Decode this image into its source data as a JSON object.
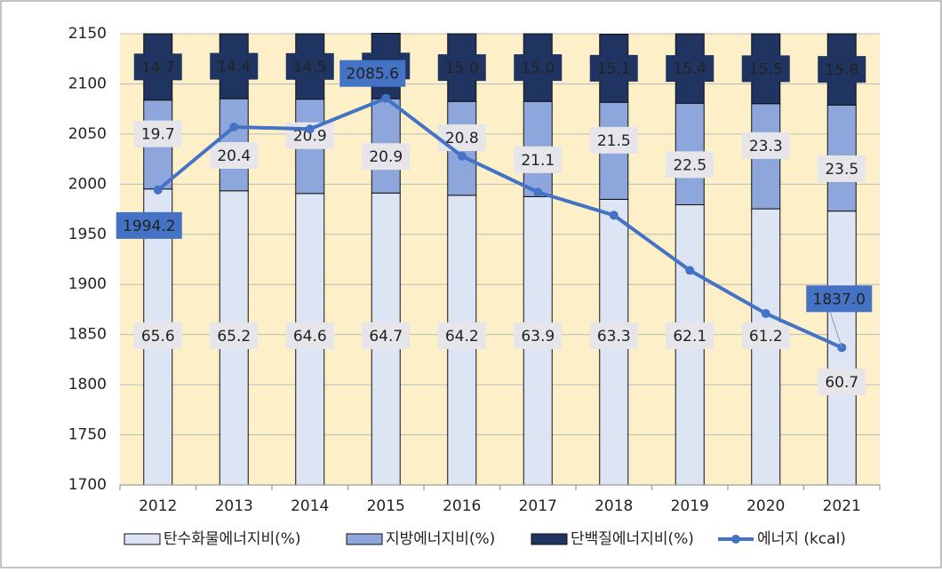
{
  "chart_data": {
    "type": "bar-line",
    "categories": [
      "2012",
      "2013",
      "2014",
      "2015",
      "2016",
      "2017",
      "2018",
      "2019",
      "2020",
      "2021"
    ],
    "ylim": [
      1700,
      2150
    ],
    "yticks": [
      1700,
      1750,
      1800,
      1850,
      1900,
      1950,
      2000,
      2050,
      2100,
      2150
    ],
    "y2lim": [
      0,
      100
    ],
    "grid": true,
    "legend": "bottom",
    "background": "#fdf0c8",
    "series": [
      {
        "name": "탄수화물에너지비(%)",
        "type": "bar",
        "axis": "y2",
        "color": "#dde4f4",
        "values": [
          65.6,
          65.2,
          64.6,
          64.7,
          64.2,
          63.9,
          63.3,
          62.1,
          61.2,
          60.7
        ],
        "value_labels": [
          "65.6",
          "65.2",
          "64.6",
          "64.7",
          "64.2",
          "63.9",
          "63.3",
          "62.1",
          "61.2",
          "60.7"
        ]
      },
      {
        "name": "지방에너지비(%)",
        "type": "bar",
        "axis": "y2",
        "color": "#8da7dc",
        "values": [
          19.7,
          20.4,
          20.9,
          20.9,
          20.8,
          21.1,
          21.5,
          22.5,
          23.3,
          23.5
        ],
        "value_labels": [
          "19.7",
          "20.4",
          "20.9",
          "20.9",
          "20.8",
          "21.1",
          "21.5",
          "22.5",
          "23.3",
          "23.5"
        ]
      },
      {
        "name": "단백질에너지비(%)",
        "type": "bar",
        "axis": "y2",
        "color": "#1f3461",
        "values": [
          14.7,
          14.4,
          14.5,
          14.5,
          15.0,
          15.0,
          15.1,
          15.4,
          15.5,
          15.8
        ],
        "value_labels": [
          "14.7",
          "14.4",
          "14.5",
          "14.5",
          "15.0",
          "15.0",
          "15.1",
          "15.4",
          "15.5",
          "15.8"
        ]
      },
      {
        "name": "에너지 (kcal)",
        "type": "line",
        "axis": "y",
        "color": "#4472c4",
        "values": [
          1994.2,
          2057,
          2055,
          2085.6,
          2028,
          1992,
          1969,
          1914,
          1871,
          1837.0
        ],
        "value_labels": [
          "1994.2",
          null,
          null,
          "2085.6",
          null,
          null,
          null,
          null,
          null,
          "1837.0"
        ]
      }
    ]
  }
}
